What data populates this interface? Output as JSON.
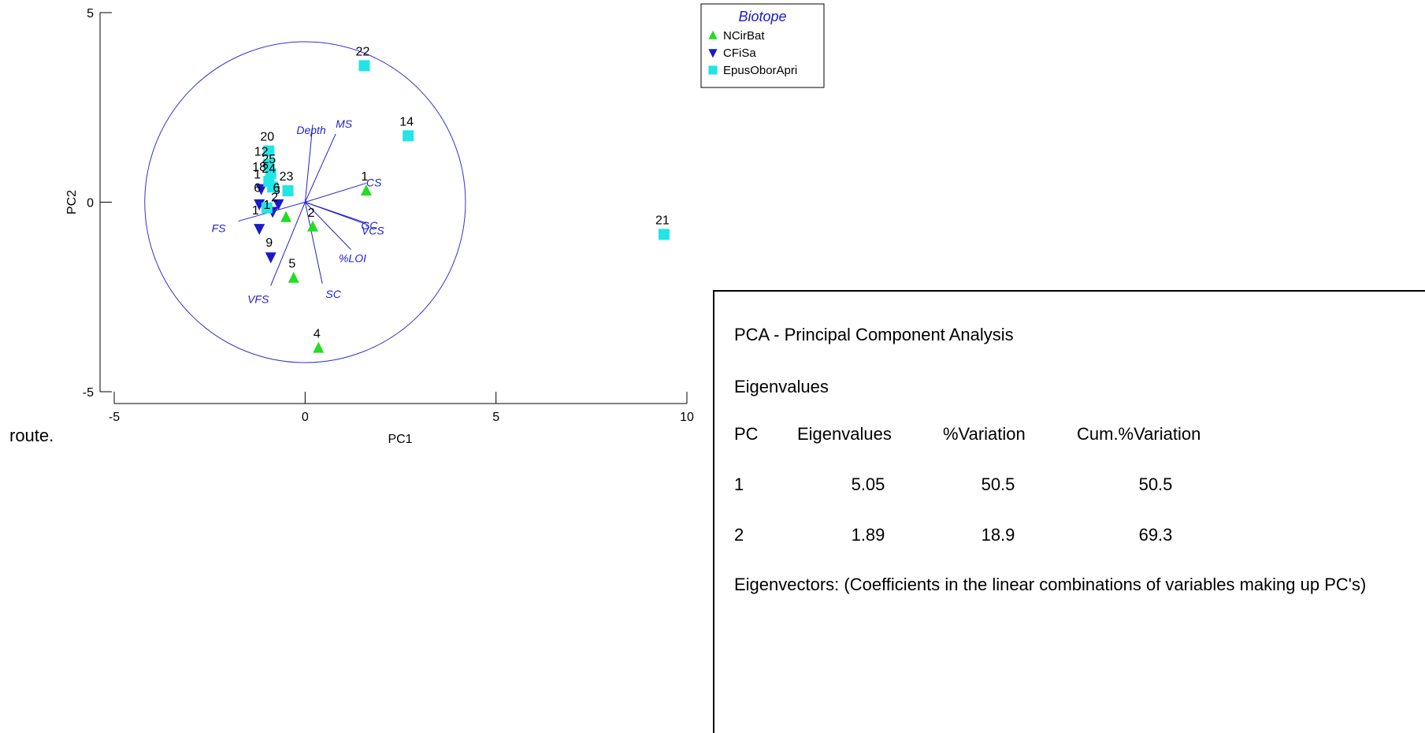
{
  "chart_data": {
    "type": "scatter",
    "title": "",
    "xlabel": "PC1",
    "ylabel": "PC2",
    "xlim": [
      -5,
      10
    ],
    "ylim": [
      -5,
      5
    ],
    "x_ticks": [
      "-5",
      "0",
      "5",
      "10"
    ],
    "y_ticks": [
      "5",
      "0",
      "-5"
    ],
    "legend": {
      "title": "Biotope",
      "placement": "top-right",
      "entries": [
        {
          "name": "NCirBat",
          "marker": "triangle-up",
          "color": "#22dd22"
        },
        {
          "name": "CFiSa",
          "marker": "triangle-down",
          "color": "#1a1acc"
        },
        {
          "name": "EpusOborApri",
          "marker": "square",
          "color": "#22e5e5"
        }
      ]
    },
    "series": [
      {
        "name": "NCirBat",
        "points": [
          {
            "label": "1",
            "x": 1.6,
            "y": 0.3
          },
          {
            "label": "2",
            "x": 0.2,
            "y": -0.65
          },
          {
            "label": "4",
            "x": 0.35,
            "y": -3.85
          },
          {
            "label": "5",
            "x": -0.3,
            "y": -2.0
          },
          {
            "label": "",
            "x": -0.5,
            "y": -0.4
          }
        ]
      },
      {
        "name": "CFiSa",
        "points": [
          {
            "label": "9",
            "x": -0.9,
            "y": -1.45
          },
          {
            "label": "",
            "x": -1.2,
            "y": -0.7
          },
          {
            "label": "3",
            "x": -0.7,
            "y": -0.05
          },
          {
            "label": "",
            "x": -0.85,
            "y": -0.25
          },
          {
            "label": "",
            "x": -1.15,
            "y": 0.35
          },
          {
            "label": "",
            "x": -1.2,
            "y": -0.05
          }
        ]
      },
      {
        "name": "EpusOborApri",
        "points": [
          {
            "label": "22",
            "x": 1.55,
            "y": 3.6
          },
          {
            "label": "14",
            "x": 2.7,
            "y": 1.75
          },
          {
            "label": "21",
            "x": 9.4,
            "y": -0.85
          },
          {
            "label": "23",
            "x": -0.45,
            "y": 0.3
          },
          {
            "label": "20",
            "x": -0.95,
            "y": 1.35
          },
          {
            "label": "",
            "x": -0.95,
            "y": 1.0
          },
          {
            "label": "",
            "x": -0.9,
            "y": 0.75
          },
          {
            "label": "",
            "x": -0.95,
            "y": 0.55
          },
          {
            "label": "",
            "x": -0.85,
            "y": 0.4
          },
          {
            "label": "",
            "x": -1.0,
            "y": -0.15
          }
        ]
      }
    ],
    "overlap_labels": [
      {
        "text": "12",
        "x": -1.15,
        "y": 1.35
      },
      {
        "text": "25",
        "x": -0.95,
        "y": 1.15
      },
      {
        "text": "18",
        "x": -1.2,
        "y": 0.95
      },
      {
        "text": "24",
        "x": -0.95,
        "y": 0.9
      },
      {
        "text": "1",
        "x": -1.25,
        "y": 0.75
      },
      {
        "text": "6",
        "x": -1.25,
        "y": 0.4
      },
      {
        "text": "6",
        "x": -0.75,
        "y": 0.4
      },
      {
        "text": "2",
        "x": -0.8,
        "y": 0.15
      },
      {
        "text": "1",
        "x": -1.3,
        "y": -0.2
      },
      {
        "text": "1",
        "x": -1.0,
        "y": -0.05
      }
    ],
    "vectors": [
      {
        "label": "MS",
        "x": 0.8,
        "y": 1.8
      },
      {
        "label": "Depth",
        "x": 0.2,
        "y": 2.05
      },
      {
        "label": "CS",
        "x": 1.6,
        "y": 0.5
      },
      {
        "label": "GC",
        "x": 1.6,
        "y": -0.55
      },
      {
        "label": "VCS",
        "x": 1.65,
        "y": -0.6
      },
      {
        "label": "%LOI",
        "x": 1.2,
        "y": -1.25
      },
      {
        "label": "SC",
        "x": 0.45,
        "y": -2.15
      },
      {
        "label": "VFS",
        "x": -0.9,
        "y": -2.2
      },
      {
        "label": "FS",
        "x": -1.75,
        "y": -0.5
      }
    ],
    "circle_radius": 4.2,
    "colors": {
      "axis": "#000000",
      "vector": "#2222cc",
      "circle": "#3333cc",
      "legend_title": "#1a1acc"
    }
  },
  "side_text": "route.",
  "panel": {
    "title": "PCA - Principal Component Analysis",
    "eigen_heading": "Eigenvalues",
    "headers": [
      "PC",
      "Eigenvalues",
      "%Variation",
      "Cum.%Variation"
    ],
    "rows": [
      [
        "1",
        "5.05",
        "50.5",
        "50.5"
      ],
      [
        "2",
        "1.89",
        "18.9",
        "69.3"
      ]
    ],
    "footer": "Eigenvectors: (Coefficients in the linear combinations of variables making up PC's)"
  }
}
